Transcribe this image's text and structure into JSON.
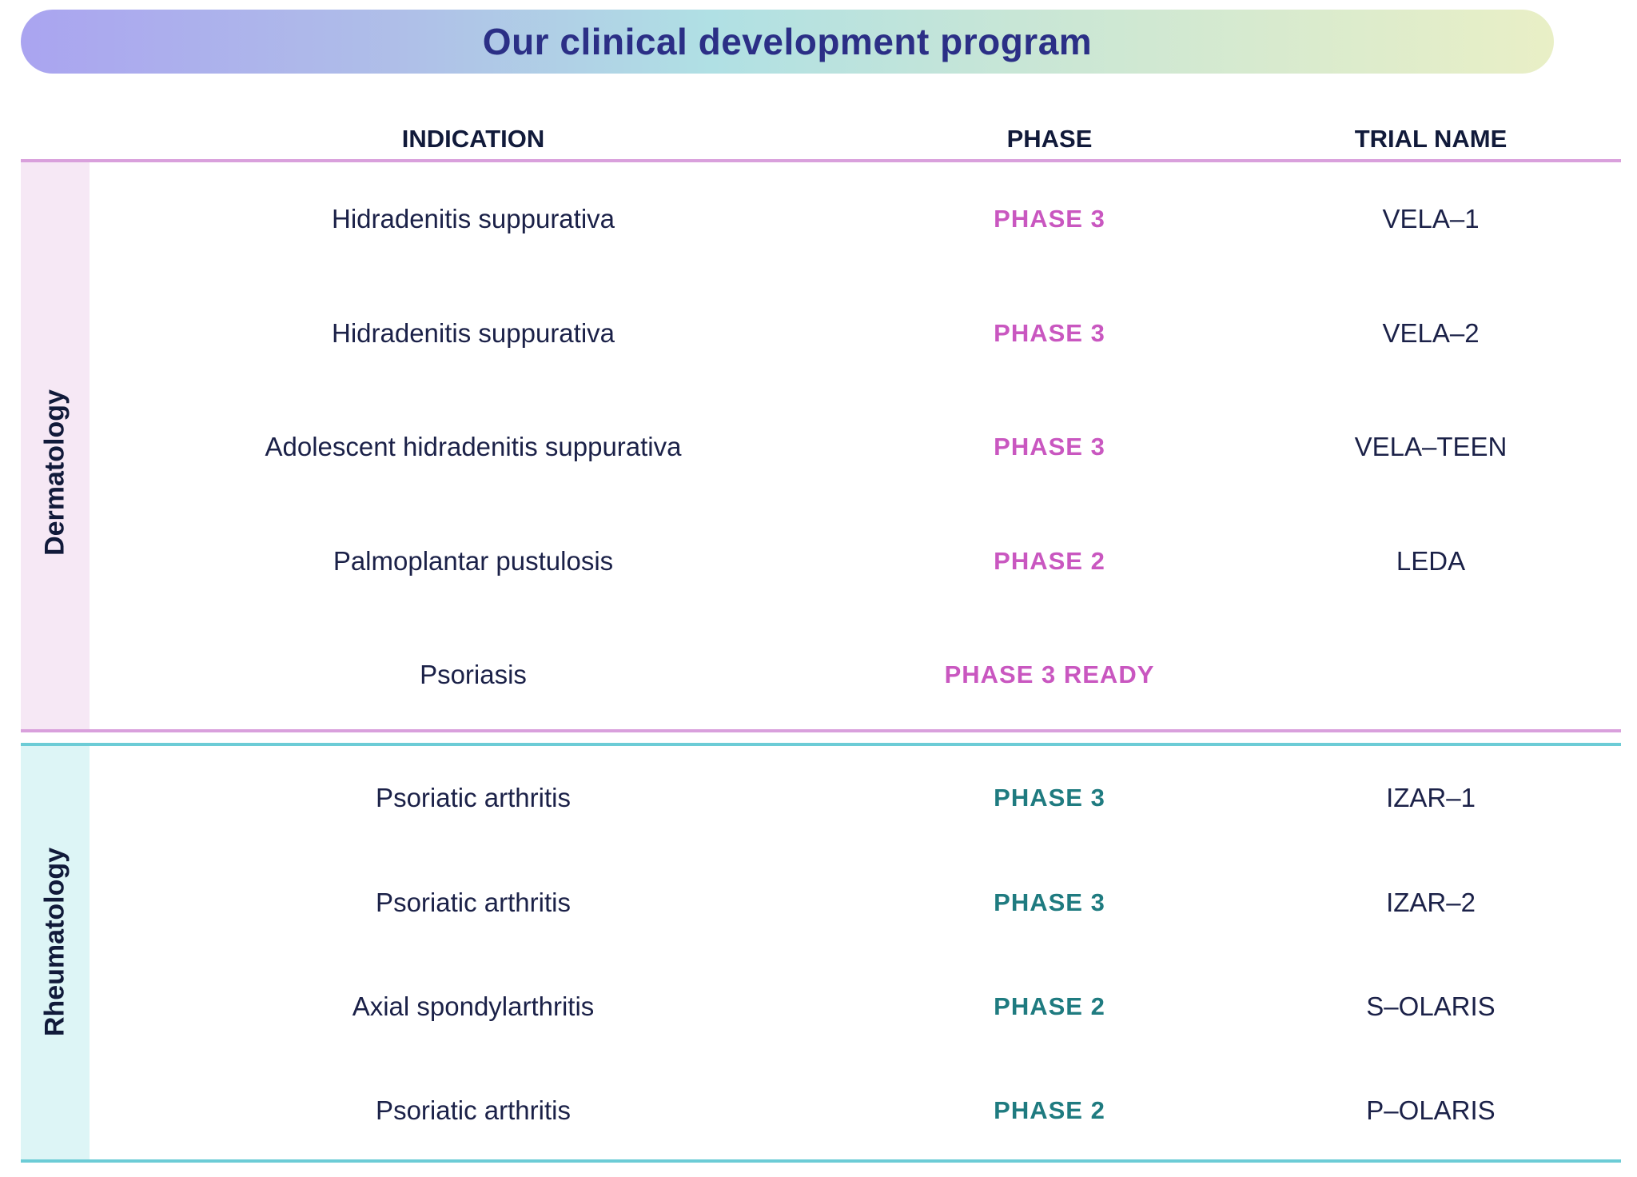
{
  "title": "Our clinical development program",
  "headers": {
    "indication": "INDICATION",
    "phase": "PHASE",
    "trial": "TRIAL NAME"
  },
  "colors": {
    "derm_accent": "#c957c0",
    "derm_line": "#d9a0dc",
    "derm_band": "#f6e8f5",
    "rheum_accent": "#1f7b80",
    "rheum_line": "#6cccd6",
    "rheum_band": "#ddf5f6"
  },
  "groups": [
    {
      "name": "Dermatology",
      "rows": [
        {
          "indication": "Hidradenitis suppurativa",
          "phase": "PHASE 3",
          "trial": "VELA–1"
        },
        {
          "indication": "Hidradenitis suppurativa",
          "phase": "PHASE 3",
          "trial": "VELA–2"
        },
        {
          "indication": "Adolescent hidradenitis suppurativa",
          "phase": "PHASE 3",
          "trial": "VELA–TEEN"
        },
        {
          "indication": "Palmoplantar pustulosis",
          "phase": "PHASE 2",
          "trial": "LEDA"
        },
        {
          "indication": "Psoriasis",
          "phase": "PHASE 3 READY",
          "trial": ""
        }
      ]
    },
    {
      "name": "Rheumatology",
      "rows": [
        {
          "indication": "Psoriatic arthritis",
          "phase": "PHASE 3",
          "trial": "IZAR–1"
        },
        {
          "indication": "Psoriatic arthritis",
          "phase": "PHASE 3",
          "trial": "IZAR–2"
        },
        {
          "indication": "Axial spondylarthritis",
          "phase": "PHASE 2",
          "trial": "S–OLARIS"
        },
        {
          "indication": "Psoriatic arthritis",
          "phase": "PHASE 2",
          "trial": "P–OLARIS"
        }
      ]
    }
  ]
}
